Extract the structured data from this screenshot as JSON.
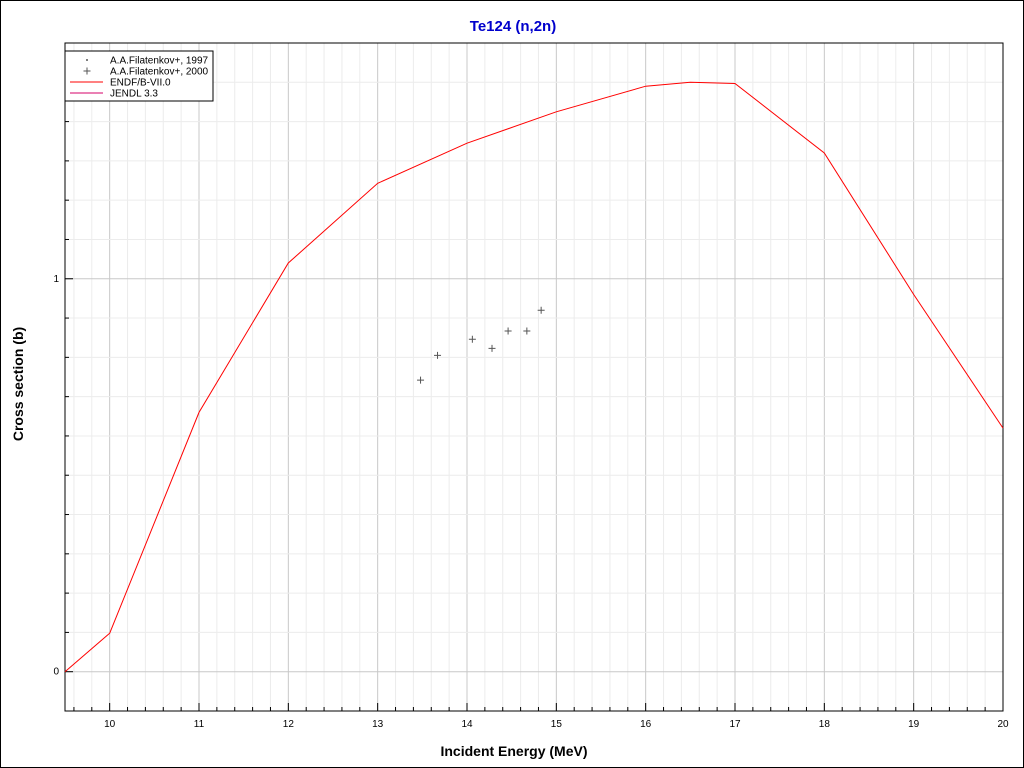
{
  "chart_data": {
    "type": "line",
    "title": "Te124 (n,2n)",
    "xlabel": "Incident Energy (MeV)",
    "ylabel": "Cross section (b)",
    "xlim": [
      9.5,
      20
    ],
    "ylim": [
      -0.1,
      1.6
    ],
    "x_ticks": [
      "10",
      "11",
      "12",
      "13",
      "14",
      "15",
      "16",
      "17",
      "18",
      "19",
      "20"
    ],
    "y_ticks": [
      "0",
      "1"
    ],
    "grid": true,
    "legend_position": "top-left",
    "colors": {
      "title": "#0000cc",
      "grid_major": "#c8c8c8",
      "grid_minor": "#ececec",
      "markers": "#555555",
      "endf": "#ff0000",
      "jendl": "#d4006a"
    },
    "series": [
      {
        "name": "A.A.Filatenkov+, 1997",
        "kind": "scatter",
        "marker": "dot",
        "x": [],
        "y": []
      },
      {
        "name": "A.A.Filatenkov+, 2000",
        "kind": "scatter",
        "marker": "plus",
        "x": [
          13.48,
          13.67,
          14.06,
          14.28,
          14.46,
          14.67,
          14.83
        ],
        "y": [
          0.742,
          0.805,
          0.846,
          0.823,
          0.867,
          0.867,
          0.92
        ]
      },
      {
        "name": "ENDF/B-VII.0",
        "kind": "line",
        "x": [
          9.5,
          10,
          11,
          12,
          13,
          14,
          15,
          16,
          16.5,
          17,
          18,
          19,
          20
        ],
        "y": [
          0,
          0.098,
          0.66,
          1.04,
          1.243,
          1.345,
          1.425,
          1.49,
          1.5,
          1.497,
          1.32,
          0.96,
          0.62
        ]
      },
      {
        "name": "JENDL 3.3",
        "kind": "line",
        "x": [],
        "y": []
      }
    ]
  }
}
